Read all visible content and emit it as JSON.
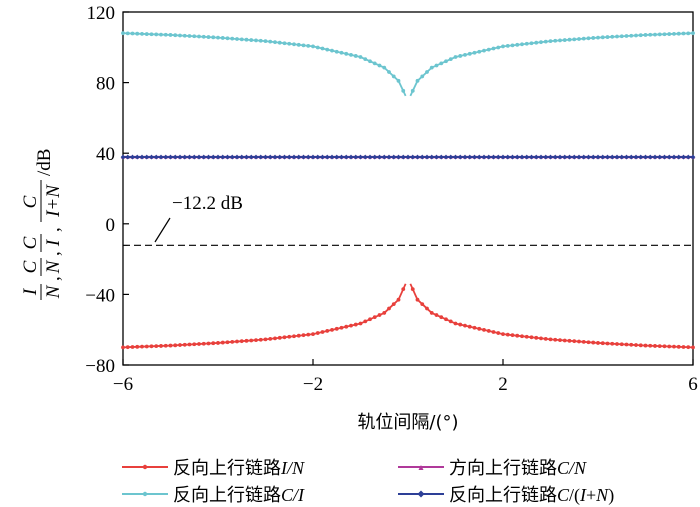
{
  "chart_data": {
    "type": "line",
    "xlabel": "轨位间隔/(°)",
    "ylabel_parts": {
      "t1_num": "I",
      "t1_den": "N",
      "t2_num": "C",
      "t2_den": "N",
      "t3_num": "C",
      "t3_den": "I",
      "t4_num": "C",
      "t4_den": "I+N",
      "unit": "/dB"
    },
    "xlim": [
      -6,
      6
    ],
    "ylim": [
      -80,
      120
    ],
    "xticks": [
      -6,
      -2,
      2,
      6
    ],
    "yticks": [
      -80,
      -40,
      0,
      40,
      80,
      120
    ],
    "xtick_labels": [
      "−6",
      "−2",
      "2",
      "6"
    ],
    "ytick_labels": [
      "−80",
      "−40",
      "0",
      "40",
      "80",
      "120"
    ],
    "grid": false,
    "legend_placement": "bottom",
    "annotation": {
      "text": "−12.2 dB",
      "x": -5.3,
      "y": -12.2
    },
    "reference_line": {
      "y": -12.2,
      "style": "dashed"
    },
    "x": [
      -6.0,
      -5.0,
      -4.0,
      -3.0,
      -2.0,
      -1.0,
      -0.5,
      -0.2,
      -0.05,
      0.05,
      0.2,
      0.5,
      1.0,
      2.0,
      3.0,
      4.0,
      5.0,
      6.0
    ],
    "series": [
      {
        "name": "反向上行链路I/N",
        "legend_prefix": "反向上行链路",
        "legend_var": "I/N",
        "legend_var_style": "italic",
        "color": "#e8403c",
        "values": [
          -70,
          -69,
          -67.5,
          -65.5,
          -62.5,
          -56.5,
          -50.5,
          -43,
          -34,
          -34,
          -43,
          -50.5,
          -56.5,
          -62.5,
          -65.5,
          -67.5,
          -69,
          -70
        ]
      },
      {
        "name": "反向上行链路C/I",
        "legend_prefix": "反向上行链路",
        "legend_var": "C/I",
        "legend_var_style": "italic",
        "color": "#6cc5cf",
        "values": [
          108,
          107,
          105.5,
          103.5,
          100.5,
          94.5,
          88.5,
          81,
          72.5,
          72.5,
          81,
          88.5,
          94.5,
          100.5,
          103.5,
          105.5,
          107,
          108
        ]
      },
      {
        "name": "方向上行链路C/N",
        "legend_prefix": "方向上行链路",
        "legend_var": "C/N",
        "legend_var_style": "italic",
        "color": "#b0399a",
        "values": [
          38,
          38,
          38,
          38,
          38,
          38,
          38,
          38,
          38,
          38,
          38,
          38,
          38,
          38,
          38,
          38,
          38,
          38
        ]
      },
      {
        "name": "反向上行链路C/(I+N)",
        "legend_prefix": "反向上行链路",
        "legend_var": "C",
        "legend_var_style": "mixed",
        "color": "#2d3f97",
        "values": [
          37.8,
          37.8,
          37.8,
          37.8,
          37.8,
          37.8,
          37.8,
          37.8,
          37.8,
          37.8,
          37.8,
          37.8,
          37.8,
          37.8,
          37.8,
          37.8,
          37.8,
          37.8
        ]
      }
    ]
  }
}
